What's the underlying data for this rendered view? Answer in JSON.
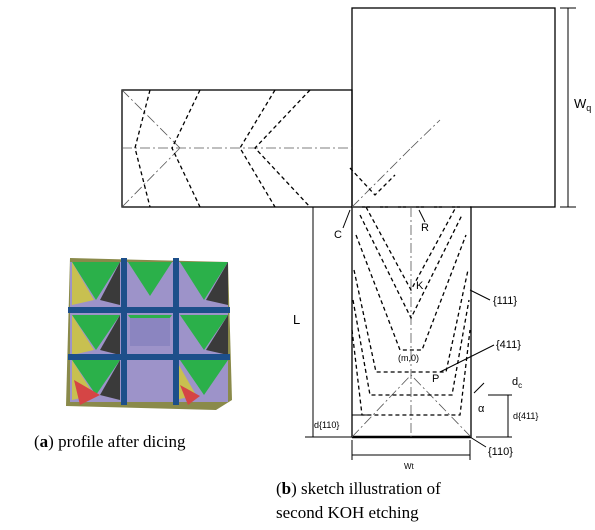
{
  "labels": {
    "wq": {
      "main": "W",
      "sub": "q"
    },
    "r": "R",
    "c": "C",
    "k": "K",
    "l": "L",
    "f111": "{111}",
    "f411": "{411}",
    "m0": "(m,0)",
    "p": "P",
    "dc": {
      "main": "d",
      "sub": "c"
    },
    "alpha": "α",
    "d411": "d{411}",
    "d110": "d{110}",
    "f110": "{110}",
    "wt": "Wt"
  },
  "captions": {
    "a": {
      "open": "(",
      "bold": "a",
      "text": ") profile after dicing"
    },
    "b": {
      "open": "(",
      "bold": "b",
      "text": ") sketch illustration of",
      "line2": "second KOH etching"
    }
  }
}
